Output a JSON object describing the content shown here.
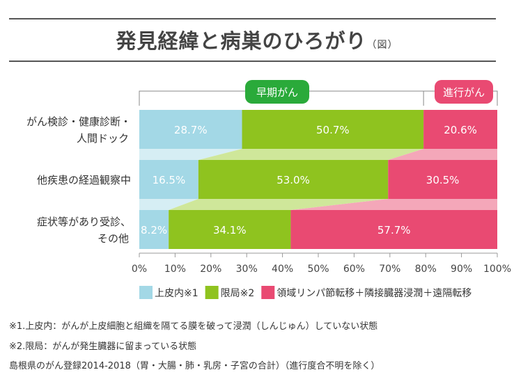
{
  "title": "発見経緯と病巣のひろがり",
  "title_suffix": "（図）",
  "chart_data": {
    "type": "bar",
    "orientation": "horizontal-stacked-100",
    "categories": [
      "がん検診・健康診断・人間ドック",
      "他疾患の経過観察中",
      "症状等があり受診、その他"
    ],
    "category_lines": [
      [
        "がん検診・健康診断・",
        "人間ドック"
      ],
      [
        "他疾患の経過観察中"
      ],
      [
        "症状等があり受診、",
        "その他"
      ]
    ],
    "series": [
      {
        "name": "上皮内※1",
        "values": [
          28.7,
          16.5,
          8.2
        ],
        "color": "#a3d8e6"
      },
      {
        "name": "限局※2",
        "values": [
          50.7,
          53.0,
          34.1
        ],
        "color": "#8fc31f"
      },
      {
        "name": "領域リンパ節転移＋隣接臓器浸潤＋遠隔転移",
        "values": [
          20.6,
          30.5,
          57.7
        ],
        "color": "#e94a72"
      }
    ],
    "xlim": [
      0,
      100
    ],
    "xticks": [
      "0%",
      "10%",
      "20%",
      "30%",
      "40%",
      "50%",
      "60%",
      "70%",
      "80%",
      "90%",
      "100%"
    ],
    "legend": "bottom",
    "groups": [
      {
        "label": "早期がん",
        "color": "#2aaa3a"
      },
      {
        "label": "進行がん",
        "color": "#e94a72"
      }
    ]
  },
  "notes": [
    "※1.上皮内：がんが上皮細胞と組織を隔てる膜を破って浸潤（しんじゅん）していない状態",
    "※2.限局：がんが発生臓器に留まっている状態",
    "島根県のがん登録2014-2018（胃・大腸・肺・乳房・子宮の合計）（進行度合不明を除く）"
  ]
}
